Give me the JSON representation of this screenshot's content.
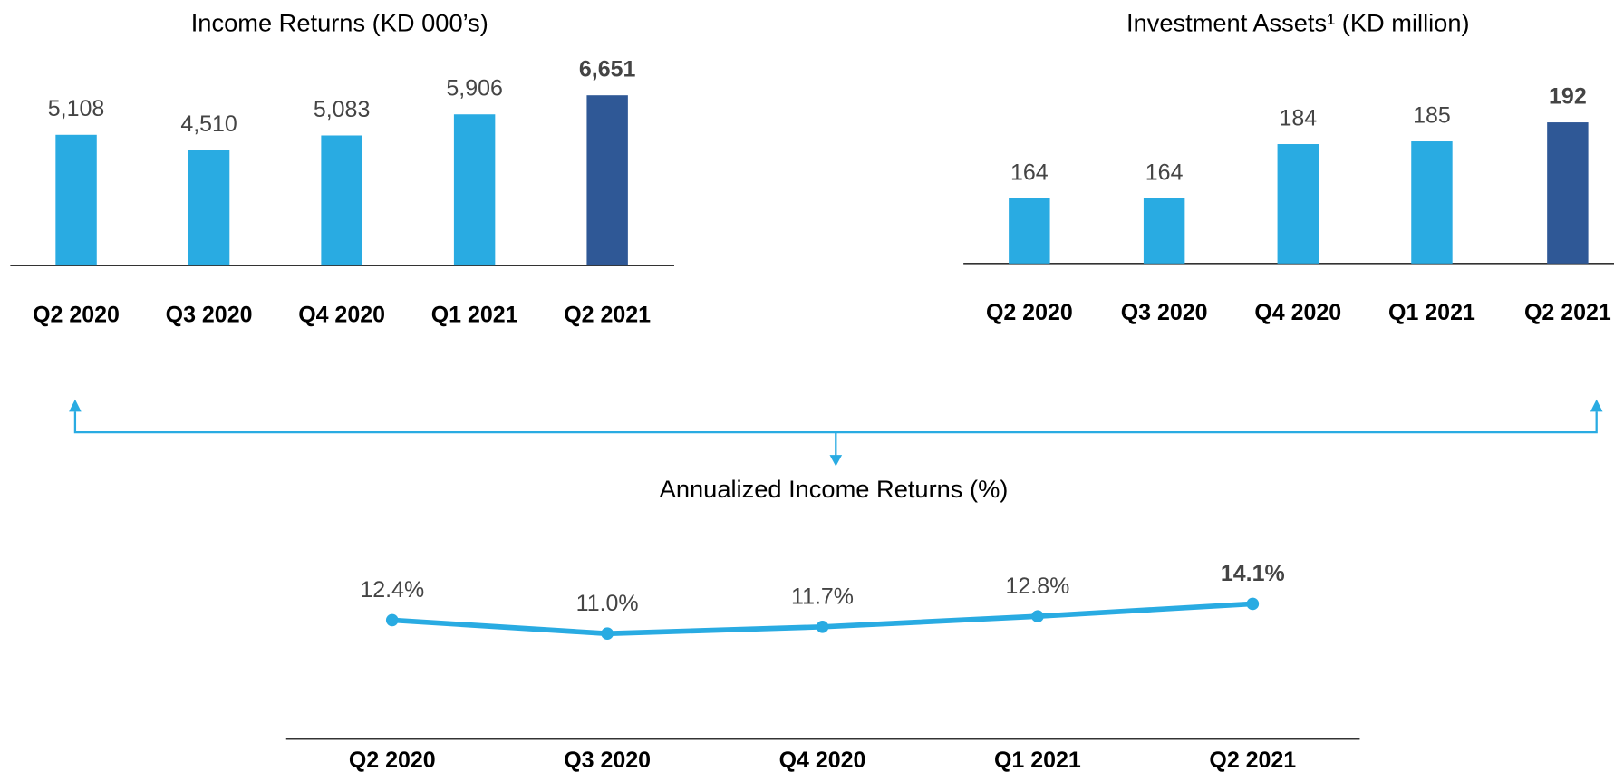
{
  "chart_data": [
    {
      "type": "bar",
      "title": "Income Returns (KD 000’s)",
      "categories": [
        "Q2 2020",
        "Q3 2020",
        "Q4 2020",
        "Q1 2021",
        "Q2 2021"
      ],
      "values": [
        5108,
        4510,
        5083,
        5906,
        6651
      ],
      "value_labels": [
        "5,108",
        "4,510",
        "5,083",
        "5,906",
        "6,651"
      ],
      "colors": [
        "#29abe2",
        "#29abe2",
        "#29abe2",
        "#29abe2",
        "#2f5896"
      ],
      "ylim": [
        0,
        8000
      ]
    },
    {
      "type": "bar",
      "title": "Investment Assets¹ (KD million)",
      "categories": [
        "Q2 2020",
        "Q3 2020",
        "Q4 2020",
        "Q1 2021",
        "Q2 2021"
      ],
      "values": [
        164,
        164,
        184,
        185,
        192
      ],
      "colors": [
        "#29abe2",
        "#29abe2",
        "#29abe2",
        "#29abe2",
        "#2f5896"
      ],
      "ylim": [
        140,
        220
      ]
    },
    {
      "type": "line",
      "title": "Annualized Income Returns (%)",
      "categories": [
        "Q2 2020",
        "Q3 2020",
        "Q4 2020",
        "Q1 2021",
        "Q2 2021"
      ],
      "values": [
        12.4,
        11.0,
        11.7,
        12.8,
        14.1
      ],
      "value_labels": [
        "12.4%",
        "11.0%",
        "11.7%",
        "12.8%",
        "14.1%"
      ],
      "color": "#29abe2",
      "ylim": [
        0,
        16
      ]
    }
  ]
}
